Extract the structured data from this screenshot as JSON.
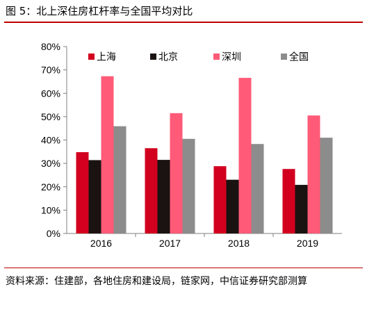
{
  "title": "图 5：北上深住房杠杆率与全国平均对比",
  "source": "资料来源：住建部，各地住房和建设局，链家网，中信证券研究部测算",
  "chart_data": {
    "type": "bar",
    "categories": [
      "2016",
      "2017",
      "2018",
      "2019"
    ],
    "series": [
      {
        "name": "上海",
        "color": "#d2001e",
        "values": [
          34.8,
          36.5,
          28.8,
          27.6
        ]
      },
      {
        "name": "北京",
        "color": "#1a1311",
        "values": [
          31.4,
          31.5,
          23.0,
          20.8
        ]
      },
      {
        "name": "深圳",
        "color": "#ff5a78",
        "values": [
          67.3,
          51.5,
          66.6,
          50.5
        ]
      },
      {
        "name": "全国",
        "color": "#8c8c8c",
        "values": [
          45.9,
          40.5,
          38.3,
          41.0
        ]
      }
    ],
    "ylim": [
      0,
      80
    ],
    "yticks": [
      "0%",
      "10%",
      "20%",
      "30%",
      "40%",
      "50%",
      "60%",
      "70%",
      "80%"
    ],
    "legend_position": "top",
    "grid": false
  }
}
